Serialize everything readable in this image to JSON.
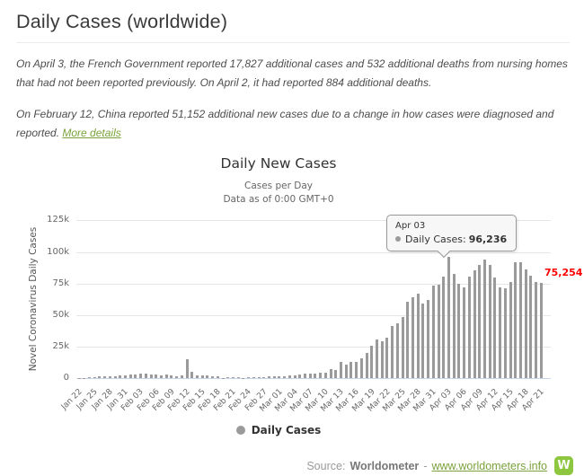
{
  "header": {
    "title": "Daily Cases (worldwide)"
  },
  "notes": {
    "p1": "On April 3, the French Government reported 17,827 additional cases and 532 additional deaths from nursing homes that had not been reported previously. On April 2, it had reported 884 additional deaths.",
    "p2": "On February 12, China reported 51,152 additional new cases due to a change in how cases were diagnosed and reported. ",
    "p2_link": "More details"
  },
  "chart": {
    "title": "Daily New Cases",
    "subtitle_line1": "Cases per Day",
    "subtitle_line2": "Data as of 0:00 GMT+0",
    "y_axis_title": "Novel Coronavirus Daily Cases",
    "y_ticks": [
      "0",
      "25k",
      "50k",
      "75k",
      "100k",
      "125k"
    ],
    "legend_label": "Daily Cases",
    "tooltip": {
      "date": "Apr 03",
      "series_label": "Daily Cases:",
      "value": "96,236"
    },
    "last_point_label": "75,254",
    "colors": {
      "bar": "#9a9a9a",
      "grid": "#e6e6e6",
      "axis_line": "#ccd6eb",
      "last_label": "#ff0000",
      "accent_green": "#8dc63f",
      "link_green": "#7aa23c"
    }
  },
  "chart_data": {
    "type": "bar",
    "title": "Daily New Cases",
    "subtitle": "Cases per Day — Data as of 0:00 GMT+0",
    "ylabel": "Novel Coronavirus Daily Cases",
    "ylim": [
      0,
      125000
    ],
    "x_tick_every": 3,
    "grid": true,
    "legend": [
      "Daily Cases"
    ],
    "annotations": [
      {
        "x": "Apr 03",
        "text": "Daily Cases: 96,236",
        "kind": "tooltip"
      },
      {
        "x": "Apr 21",
        "text": "75,254",
        "kind": "data-label",
        "color": "#ff0000"
      }
    ],
    "x": [
      "Jan 22",
      "Jan 23",
      "Jan 24",
      "Jan 25",
      "Jan 26",
      "Jan 27",
      "Jan 28",
      "Jan 29",
      "Jan 30",
      "Jan 31",
      "Feb 01",
      "Feb 02",
      "Feb 03",
      "Feb 04",
      "Feb 05",
      "Feb 06",
      "Feb 07",
      "Feb 08",
      "Feb 09",
      "Feb 10",
      "Feb 11",
      "Feb 12",
      "Feb 13",
      "Feb 14",
      "Feb 15",
      "Feb 16",
      "Feb 17",
      "Feb 18",
      "Feb 19",
      "Feb 20",
      "Feb 21",
      "Feb 22",
      "Feb 23",
      "Feb 24",
      "Feb 25",
      "Feb 26",
      "Feb 27",
      "Feb 28",
      "Feb 29",
      "Mar 01",
      "Mar 02",
      "Mar 03",
      "Mar 04",
      "Mar 05",
      "Mar 06",
      "Mar 07",
      "Mar 08",
      "Mar 09",
      "Mar 10",
      "Mar 11",
      "Mar 12",
      "Mar 13",
      "Mar 14",
      "Mar 15",
      "Mar 16",
      "Mar 17",
      "Mar 18",
      "Mar 19",
      "Mar 20",
      "Mar 21",
      "Mar 22",
      "Mar 23",
      "Mar 24",
      "Mar 25",
      "Mar 26",
      "Mar 27",
      "Mar 28",
      "Mar 29",
      "Mar 30",
      "Mar 31",
      "Apr 01",
      "Apr 02",
      "Apr 03",
      "Apr 04",
      "Apr 05",
      "Apr 06",
      "Apr 07",
      "Apr 08",
      "Apr 09",
      "Apr 10",
      "Apr 11",
      "Apr 12",
      "Apr 13",
      "Apr 14",
      "Apr 15",
      "Apr 16",
      "Apr 17",
      "Apr 18",
      "Apr 19",
      "Apr 20",
      "Apr 21"
    ],
    "values": [
      265,
      468,
      700,
      786,
      1781,
      1477,
      1755,
      2010,
      2127,
      2603,
      2838,
      3239,
      3915,
      3721,
      3173,
      3437,
      2676,
      3001,
      2546,
      2035,
      2560,
      15136,
      5090,
      2629,
      2095,
      2132,
      2003,
      1852,
      516,
      977,
      996,
      978,
      554,
      882,
      741,
      992,
      1292,
      1503,
      1989,
      1981,
      1858,
      2573,
      2298,
      3111,
      3625,
      4049,
      3892,
      4390,
      4567,
      7266,
      6353,
      12849,
      11059,
      13036,
      12920,
      15803,
      20510,
      26158,
      30648,
      29429,
      32480,
      41371,
      43744,
      48461,
      60830,
      64501,
      66761,
      59232,
      62382,
      73614,
      74250,
      80861,
      96236,
      82849,
      74710,
      71772,
      80698,
      85567,
      89657,
      94253,
      89461,
      80138,
      72308,
      71463,
      76647,
      92127,
      91961,
      86103,
      81153,
      76276,
      75254
    ]
  },
  "footer": {
    "source_prefix": "Source:",
    "source_name": "Worldometer",
    "separator": "-",
    "source_link": "www.worldometers.info",
    "logo_letter": "W"
  }
}
